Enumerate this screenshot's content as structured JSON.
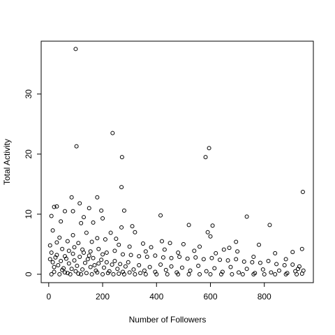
{
  "chart_data": {
    "type": "scatter",
    "x_label": "Number of Followers",
    "y_label": "Total Activity",
    "xlim": [
      -28,
      982
    ],
    "ylim": [
      -1.4,
      38.8
    ],
    "xticks": [
      0,
      200,
      400,
      600,
      800
    ],
    "yticks": [
      0,
      10,
      20,
      30
    ],
    "color": "#000000",
    "x": [
      100,
      237,
      103,
      272,
      582,
      595,
      270,
      943,
      85,
      180,
      115,
      30,
      20,
      280,
      415,
      735,
      820,
      520,
      608,
      310,
      90,
      150,
      195,
      200,
      130,
      60,
      10,
      15,
      45,
      120,
      165,
      270,
      320,
      590,
      600,
      695,
      780,
      840,
      905,
      940,
      760,
      880,
      930,
      945,
      500,
      450,
      420,
      350,
      230,
      250,
      180,
      90,
      40,
      70,
      140,
      210,
      380,
      560,
      650,
      700,
      670,
      620,
      540,
      480,
      430,
      360,
      300,
      260,
      160,
      110,
      30,
      5,
      10,
      50,
      75,
      95,
      125,
      155,
      185,
      215,
      245,
      275,
      305,
      335,
      365,
      395,
      425,
      455,
      485,
      515,
      545,
      575,
      605,
      635,
      665,
      695,
      725,
      755,
      785,
      815,
      845,
      875,
      905,
      925,
      5,
      15,
      25,
      35,
      45,
      55,
      65,
      75,
      85,
      95,
      105,
      115,
      125,
      135,
      145,
      155,
      165,
      175,
      185,
      195,
      205,
      215,
      225,
      235,
      245,
      255,
      265,
      275,
      285,
      295,
      315,
      335,
      355,
      375,
      395,
      415,
      435,
      455,
      475,
      495,
      525,
      555,
      585,
      615,
      645,
      675,
      705,
      735,
      765,
      795,
      825,
      855,
      885,
      915,
      940,
      10,
      40,
      80,
      120,
      160,
      200,
      240,
      280,
      320,
      360,
      400,
      440,
      480,
      520,
      560,
      600,
      640,
      680,
      720,
      760,
      800,
      840,
      880,
      920,
      20,
      60,
      100,
      140,
      180,
      220,
      260,
      300,
      340,
      30,
      60,
      90,
      150,
      200,
      20,
      50,
      70,
      110,
      130,
      170
    ],
    "values": [
      37.5,
      23.5,
      21.3,
      19.5,
      19.5,
      21,
      14.5,
      13.7,
      12.8,
      12.8,
      11.8,
      11.3,
      11.2,
      10.6,
      9.8,
      9.6,
      8.2,
      8.2,
      8.1,
      8,
      10.5,
      11,
      10.6,
      9.3,
      9.5,
      10.5,
      9.7,
      7.3,
      8.8,
      8.5,
      8.6,
      7.8,
      7,
      7,
      6.3,
      5.4,
      4.9,
      3.5,
      3.7,
      4.2,
      2.9,
      2.5,
      1.3,
      0.6,
      5,
      5.2,
      5.5,
      5.1,
      6.9,
      5.9,
      6,
      6.5,
      6.1,
      5.5,
      6.9,
      5.8,
      4.5,
      4.6,
      4.1,
      3.8,
      4.4,
      3.5,
      3.9,
      3.6,
      4.1,
      3.8,
      4.6,
      4.9,
      5.4,
      5.2,
      5.3,
      4.8,
      3.6,
      4.2,
      3.9,
      4.5,
      4.1,
      3.8,
      4.2,
      3.6,
      3.9,
      3.3,
      3.2,
      3,
      2.9,
      3.1,
      2.8,
      2.7,
      2.9,
      2.6,
      2.8,
      2.5,
      2.7,
      2.4,
      2.3,
      2.5,
      2.1,
      2,
      1.9,
      2.2,
      1.7,
      1.5,
      1.6,
      0.9,
      2.5,
      2,
      2.8,
      1.5,
      2.2,
      1,
      2.6,
      1.8,
      0.9,
      2.3,
      1.4,
      2.9,
      0.8,
      1.9,
      2.5,
      1.2,
      2.7,
      0.6,
      1.8,
      2.4,
      1.1,
      2,
      0.5,
      1.6,
      2.2,
      0.9,
      1.7,
      0.4,
      1.3,
      2,
      0.8,
      1.5,
      0.6,
      1.2,
      0.4,
      1.6,
      0.7,
      1.3,
      0.3,
      1.1,
      0.6,
      1.4,
      0.5,
      1,
      0.4,
      1.2,
      0.3,
      0.9,
      0.2,
      0.8,
      0.3,
      0.6,
      0.2,
      0.5,
      0.1,
      0,
      0,
      0,
      0,
      0,
      0,
      0,
      0,
      0,
      0,
      0,
      0,
      0,
      0,
      0,
      0,
      0,
      0,
      0,
      0,
      0,
      0,
      0,
      0,
      0.4,
      0.3,
      0.5,
      0.2,
      0.3,
      0.2,
      0.1,
      0.3,
      0.2,
      3.2,
      3,
      3.4,
      3.1,
      3.3,
      1.2,
      0.7,
      0.2,
      0.1,
      3.6,
      1.5
    ]
  }
}
